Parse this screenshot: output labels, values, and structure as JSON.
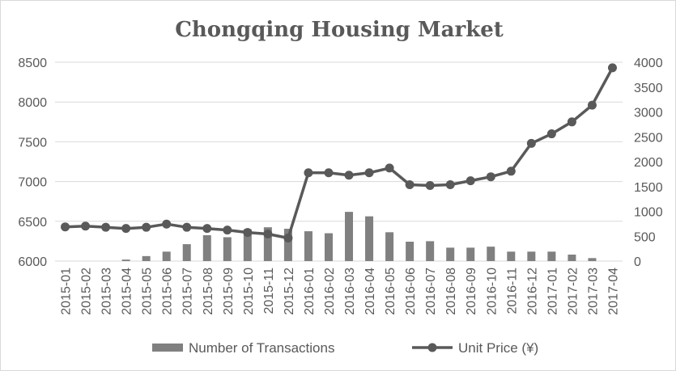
{
  "chart_data": {
    "type": "bar+line",
    "title": "Chongqing Housing Market",
    "categories": [
      "2015-01",
      "2015-02",
      "2015-03",
      "2015-04",
      "2015-05",
      "2015-06",
      "2015-07",
      "2015-08",
      "2015-09",
      "2015-10",
      "2015-11",
      "2015-12",
      "2016-01",
      "2016-02",
      "2016-03",
      "2016-04",
      "2016-05",
      "2016-06",
      "2016-07",
      "2016-08",
      "2016-09",
      "2016-10",
      "2016-11",
      "2016-12",
      "2017-01",
      "2017-02",
      "2017-03",
      "2017-04"
    ],
    "y_left": {
      "min": 6000,
      "max": 8500,
      "ticks": [
        "6000",
        "6500",
        "7000",
        "7500",
        "8000",
        "8500"
      ]
    },
    "y_right": {
      "min": 0,
      "max": 4000,
      "ticks": [
        "0",
        "500",
        "1000",
        "1500",
        "2000",
        "2500",
        "3000",
        "3500",
        "4000"
      ]
    },
    "series": [
      {
        "name": "Number of Transactions",
        "type": "bar",
        "axis": "right",
        "color": "#808080",
        "values": [
          0,
          0,
          0,
          30,
          100,
          190,
          340,
          520,
          480,
          640,
          680,
          650,
          600,
          560,
          990,
          900,
          580,
          390,
          400,
          270,
          270,
          290,
          190,
          190,
          190,
          130,
          60,
          0
        ]
      },
      {
        "name": "Unit Price (¥)",
        "type": "line",
        "axis": "left",
        "color": "#595959",
        "values": [
          6430,
          6440,
          6425,
          6410,
          6425,
          6465,
          6425,
          6410,
          6390,
          6360,
          6340,
          6290,
          7110,
          7110,
          7080,
          7110,
          7170,
          6960,
          6950,
          6960,
          7010,
          7060,
          7130,
          7480,
          7600,
          7750,
          7960,
          8430
        ]
      }
    ],
    "grid": "horizontal",
    "legend": "bottom"
  }
}
